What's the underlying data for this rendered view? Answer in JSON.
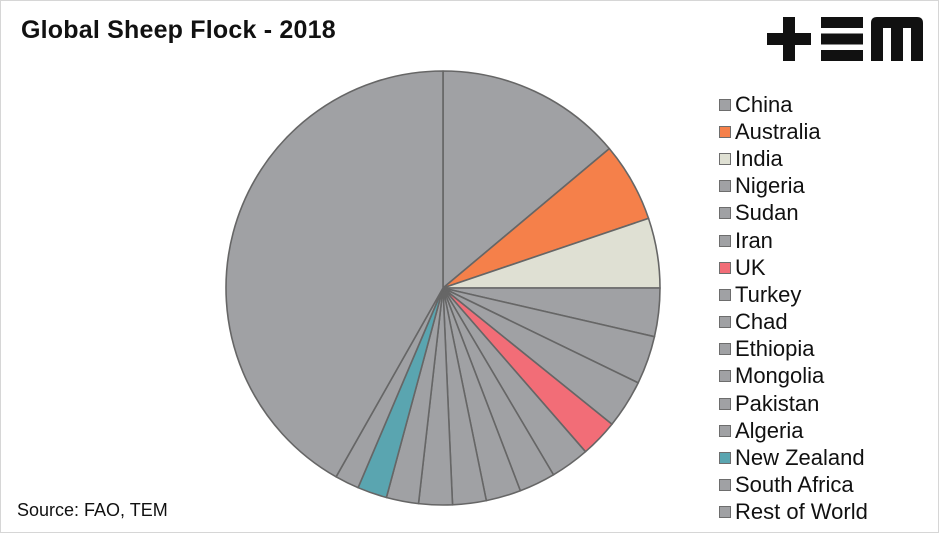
{
  "title": "Global Sheep Flock - 2018",
  "source": "Source: FAO, TEM",
  "logo": {
    "name": "tem-logo",
    "text": "+EM",
    "color": "#111111"
  },
  "colors": {
    "default_slice": "#a0a1a4",
    "australia": "#f5804a",
    "india": "#dfe0d3",
    "uk": "#f26d77",
    "new_zealand": "#5aa5b0",
    "slice_border": "#666666"
  },
  "chart_data": {
    "type": "pie",
    "title": "Global Sheep Flock - 2018",
    "legend_position": "right",
    "start": "top, clockwise",
    "series": [
      {
        "name": "China",
        "value": 13.9,
        "color": "#a0a1a4"
      },
      {
        "name": "Australia",
        "value": 5.9,
        "color": "#f5804a"
      },
      {
        "name": "India",
        "value": 5.2,
        "color": "#dfe0d3"
      },
      {
        "name": "Nigeria",
        "value": 3.6,
        "color": "#a0a1a4"
      },
      {
        "name": "Sudan",
        "value": 3.6,
        "color": "#a0a1a4"
      },
      {
        "name": "Iran",
        "value": 3.6,
        "color": "#a0a1a4"
      },
      {
        "name": "UK",
        "value": 2.8,
        "color": "#f26d77"
      },
      {
        "name": "Turkey",
        "value": 2.9,
        "color": "#a0a1a4"
      },
      {
        "name": "Chad",
        "value": 2.7,
        "color": "#a0a1a4"
      },
      {
        "name": "Ethiopia",
        "value": 2.6,
        "color": "#a0a1a4"
      },
      {
        "name": "Mongolia",
        "value": 2.5,
        "color": "#a0a1a4"
      },
      {
        "name": "Pakistan",
        "value": 2.5,
        "color": "#a0a1a4"
      },
      {
        "name": "Algeria",
        "value": 2.4,
        "color": "#a0a1a4"
      },
      {
        "name": "New Zealand",
        "value": 2.2,
        "color": "#5aa5b0"
      },
      {
        "name": "South Africa",
        "value": 1.8,
        "color": "#a0a1a4"
      },
      {
        "name": "Rest of World",
        "value": 41.8,
        "color": "#a0a1a4"
      }
    ]
  }
}
